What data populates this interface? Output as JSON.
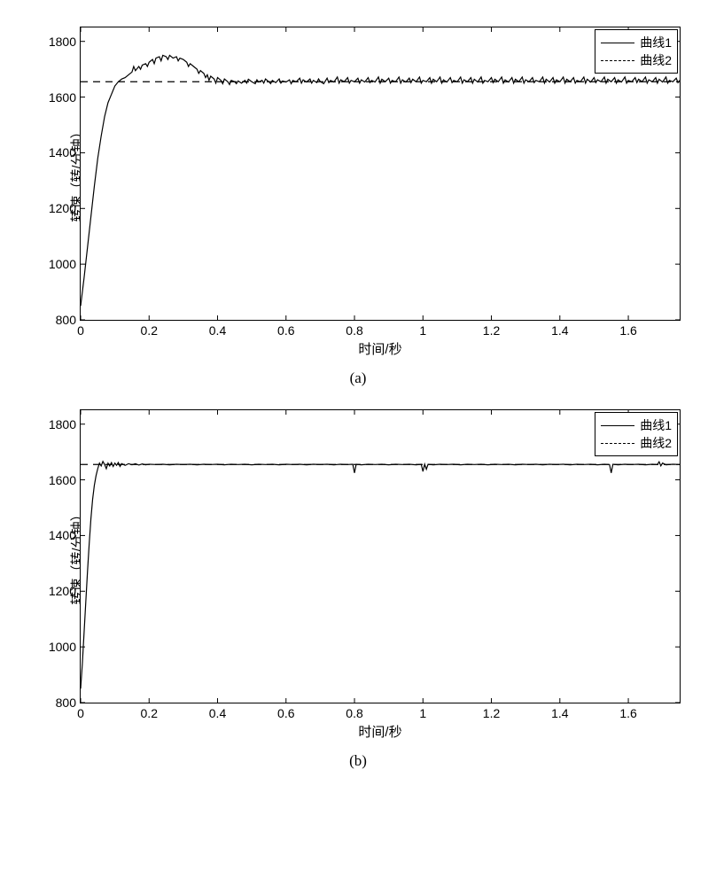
{
  "chart_a": {
    "type": "line",
    "xlabel": "时间/秒",
    "ylabel": "转速（转/分钟）",
    "sublabel": "(a)",
    "xlim": [
      0,
      1.75
    ],
    "ylim": [
      800,
      1850
    ],
    "xtick_step": 0.2,
    "xticks": [
      "0",
      "0.2",
      "0.4",
      "0.6",
      "0.8",
      "1",
      "1.2",
      "1.4",
      "1.6"
    ],
    "yticks": [
      "800",
      "1000",
      "1200",
      "1400",
      "1600",
      "1800"
    ],
    "legend": {
      "series1": "曲线1",
      "series2": "曲线2"
    },
    "line_color": "#000000",
    "background_color": "#ffffff",
    "label_fontsize": 15,
    "tick_fontsize": 14,
    "series1_points": [
      [
        0,
        850
      ],
      [
        0.01,
        950
      ],
      [
        0.02,
        1060
      ],
      [
        0.03,
        1170
      ],
      [
        0.04,
        1280
      ],
      [
        0.05,
        1380
      ],
      [
        0.06,
        1460
      ],
      [
        0.07,
        1530
      ],
      [
        0.08,
        1580
      ],
      [
        0.09,
        1610
      ],
      [
        0.1,
        1640
      ],
      [
        0.11,
        1655
      ],
      [
        0.12,
        1665
      ],
      [
        0.13,
        1670
      ],
      [
        0.14,
        1680
      ],
      [
        0.15,
        1690
      ],
      [
        0.155,
        1710
      ],
      [
        0.16,
        1695
      ],
      [
        0.17,
        1710
      ],
      [
        0.175,
        1700
      ],
      [
        0.18,
        1715
      ],
      [
        0.19,
        1720
      ],
      [
        0.195,
        1710
      ],
      [
        0.2,
        1725
      ],
      [
        0.21,
        1735
      ],
      [
        0.215,
        1720
      ],
      [
        0.22,
        1740
      ],
      [
        0.23,
        1745
      ],
      [
        0.235,
        1730
      ],
      [
        0.24,
        1750
      ],
      [
        0.25,
        1745
      ],
      [
        0.255,
        1735
      ],
      [
        0.26,
        1750
      ],
      [
        0.27,
        1740
      ],
      [
        0.28,
        1745
      ],
      [
        0.285,
        1730
      ],
      [
        0.29,
        1740
      ],
      [
        0.3,
        1735
      ],
      [
        0.31,
        1725
      ],
      [
        0.315,
        1710
      ],
      [
        0.32,
        1720
      ],
      [
        0.33,
        1710
      ],
      [
        0.34,
        1700
      ],
      [
        0.345,
        1685
      ],
      [
        0.35,
        1695
      ],
      [
        0.36,
        1685
      ],
      [
        0.365,
        1670
      ],
      [
        0.37,
        1680
      ],
      [
        0.375,
        1660
      ],
      [
        0.38,
        1675
      ],
      [
        0.39,
        1665
      ],
      [
        0.395,
        1650
      ],
      [
        0.4,
        1670
      ],
      [
        0.41,
        1660
      ],
      [
        0.415,
        1648
      ],
      [
        0.42,
        1665
      ],
      [
        0.43,
        1655
      ],
      [
        0.435,
        1645
      ],
      [
        0.44,
        1660
      ],
      [
        0.45,
        1655
      ],
      [
        0.455,
        1648
      ],
      [
        0.46,
        1658
      ],
      [
        0.47,
        1650
      ],
      [
        0.48,
        1660
      ],
      [
        0.485,
        1650
      ],
      [
        0.49,
        1664
      ],
      [
        0.5,
        1655
      ],
      [
        0.51,
        1648
      ],
      [
        0.515,
        1662
      ],
      [
        0.52,
        1654
      ],
      [
        0.53,
        1660
      ],
      [
        0.535,
        1650
      ],
      [
        0.54,
        1665
      ],
      [
        0.55,
        1655
      ],
      [
        0.555,
        1648
      ],
      [
        0.56,
        1660
      ],
      [
        0.57,
        1652
      ],
      [
        0.58,
        1665
      ],
      [
        0.585,
        1650
      ],
      [
        0.59,
        1658
      ],
      [
        0.6,
        1654
      ],
      [
        0.61,
        1662
      ],
      [
        0.615,
        1648
      ],
      [
        0.62,
        1660
      ],
      [
        0.63,
        1655
      ],
      [
        0.64,
        1668
      ],
      [
        0.645,
        1650
      ],
      [
        0.65,
        1662
      ],
      [
        0.66,
        1654
      ],
      [
        0.67,
        1665
      ],
      [
        0.675,
        1650
      ],
      [
        0.68,
        1660
      ],
      [
        0.69,
        1652
      ],
      [
        0.695,
        1665
      ],
      [
        0.7,
        1656
      ],
      [
        0.71,
        1648
      ],
      [
        0.72,
        1668
      ],
      [
        0.725,
        1652
      ],
      [
        0.73,
        1660
      ],
      [
        0.74,
        1654
      ],
      [
        0.75,
        1672
      ],
      [
        0.755,
        1650
      ],
      [
        0.76,
        1662
      ],
      [
        0.77,
        1655
      ],
      [
        0.78,
        1670
      ],
      [
        0.785,
        1650
      ],
      [
        0.79,
        1660
      ],
      [
        0.8,
        1655
      ],
      [
        0.81,
        1668
      ],
      [
        0.815,
        1650
      ],
      [
        0.82,
        1662
      ],
      [
        0.83,
        1654
      ],
      [
        0.84,
        1670
      ],
      [
        0.845,
        1652
      ],
      [
        0.85,
        1660
      ],
      [
        0.86,
        1654
      ],
      [
        0.87,
        1672
      ],
      [
        0.875,
        1650
      ],
      [
        0.88,
        1664
      ],
      [
        0.89,
        1655
      ],
      [
        0.9,
        1668
      ],
      [
        0.905,
        1650
      ],
      [
        0.91,
        1660
      ],
      [
        0.92,
        1655
      ],
      [
        0.93,
        1672
      ],
      [
        0.935,
        1650
      ],
      [
        0.94,
        1662
      ],
      [
        0.95,
        1654
      ],
      [
        0.96,
        1668
      ],
      [
        0.965,
        1652
      ],
      [
        0.97,
        1664
      ],
      [
        0.98,
        1655
      ],
      [
        0.99,
        1672
      ],
      [
        0.995,
        1650
      ],
      [
        1.0,
        1660
      ],
      [
        1.01,
        1655
      ],
      [
        1.02,
        1670
      ],
      [
        1.025,
        1650
      ],
      [
        1.03,
        1664
      ],
      [
        1.04,
        1655
      ],
      [
        1.05,
        1672
      ],
      [
        1.055,
        1650
      ],
      [
        1.06,
        1662
      ],
      [
        1.07,
        1654
      ],
      [
        1.08,
        1670
      ],
      [
        1.085,
        1652
      ],
      [
        1.09,
        1660
      ],
      [
        1.1,
        1655
      ],
      [
        1.11,
        1672
      ],
      [
        1.115,
        1650
      ],
      [
        1.12,
        1662
      ],
      [
        1.13,
        1655
      ],
      [
        1.14,
        1670
      ],
      [
        1.145,
        1650
      ],
      [
        1.15,
        1664
      ],
      [
        1.16,
        1654
      ],
      [
        1.17,
        1672
      ],
      [
        1.175,
        1650
      ],
      [
        1.18,
        1660
      ],
      [
        1.19,
        1655
      ],
      [
        1.2,
        1670
      ],
      [
        1.205,
        1652
      ],
      [
        1.21,
        1664
      ],
      [
        1.22,
        1655
      ],
      [
        1.23,
        1672
      ],
      [
        1.235,
        1650
      ],
      [
        1.24,
        1662
      ],
      [
        1.25,
        1654
      ],
      [
        1.26,
        1670
      ],
      [
        1.265,
        1650
      ],
      [
        1.27,
        1664
      ],
      [
        1.28,
        1655
      ],
      [
        1.29,
        1672
      ],
      [
        1.295,
        1650
      ],
      [
        1.3,
        1662
      ],
      [
        1.31,
        1655
      ],
      [
        1.32,
        1670
      ],
      [
        1.325,
        1652
      ],
      [
        1.33,
        1660
      ],
      [
        1.34,
        1655
      ],
      [
        1.35,
        1672
      ],
      [
        1.355,
        1650
      ],
      [
        1.36,
        1664
      ],
      [
        1.37,
        1654
      ],
      [
        1.38,
        1670
      ],
      [
        1.385,
        1650
      ],
      [
        1.39,
        1662
      ],
      [
        1.4,
        1655
      ],
      [
        1.41,
        1672
      ],
      [
        1.415,
        1650
      ],
      [
        1.42,
        1664
      ],
      [
        1.43,
        1655
      ],
      [
        1.44,
        1670
      ],
      [
        1.445,
        1650
      ],
      [
        1.45,
        1660
      ],
      [
        1.46,
        1655
      ],
      [
        1.47,
        1672
      ],
      [
        1.475,
        1650
      ],
      [
        1.48,
        1664
      ],
      [
        1.49,
        1654
      ],
      [
        1.5,
        1670
      ],
      [
        1.505,
        1652
      ],
      [
        1.51,
        1662
      ],
      [
        1.52,
        1655
      ],
      [
        1.53,
        1672
      ],
      [
        1.535,
        1650
      ],
      [
        1.54,
        1664
      ],
      [
        1.55,
        1655
      ],
      [
        1.56,
        1670
      ],
      [
        1.565,
        1650
      ],
      [
        1.57,
        1662
      ],
      [
        1.58,
        1654
      ],
      [
        1.59,
        1672
      ],
      [
        1.595,
        1650
      ],
      [
        1.6,
        1660
      ],
      [
        1.61,
        1655
      ],
      [
        1.62,
        1670
      ],
      [
        1.625,
        1652
      ],
      [
        1.63,
        1664
      ],
      [
        1.64,
        1655
      ],
      [
        1.65,
        1672
      ],
      [
        1.655,
        1650
      ],
      [
        1.66,
        1662
      ],
      [
        1.67,
        1655
      ],
      [
        1.68,
        1670
      ],
      [
        1.685,
        1650
      ],
      [
        1.69,
        1664
      ],
      [
        1.7,
        1654
      ],
      [
        1.71,
        1672
      ],
      [
        1.715,
        1650
      ],
      [
        1.72,
        1660
      ],
      [
        1.73,
        1655
      ],
      [
        1.74,
        1668
      ],
      [
        1.745,
        1652
      ],
      [
        1.75,
        1660
      ]
    ],
    "series2_value": 1655
  },
  "chart_b": {
    "type": "line",
    "xlabel": "时间/秒",
    "ylabel": "转速（转/分钟）",
    "sublabel": "(b)",
    "xlim": [
      0,
      1.75
    ],
    "ylim": [
      800,
      1850
    ],
    "xtick_step": 0.2,
    "xticks": [
      "0",
      "0.2",
      "0.4",
      "0.6",
      "0.8",
      "1",
      "1.2",
      "1.4",
      "1.6"
    ],
    "yticks": [
      "800",
      "1000",
      "1200",
      "1400",
      "1600",
      "1800"
    ],
    "legend": {
      "series1": "曲线1",
      "series2": "曲线2"
    },
    "line_color": "#000000",
    "background_color": "#ffffff",
    "label_fontsize": 15,
    "tick_fontsize": 14,
    "series1_points": [
      [
        0,
        850
      ],
      [
        0.005,
        940
      ],
      [
        0.01,
        1050
      ],
      [
        0.015,
        1160
      ],
      [
        0.02,
        1270
      ],
      [
        0.025,
        1370
      ],
      [
        0.03,
        1460
      ],
      [
        0.035,
        1530
      ],
      [
        0.04,
        1580
      ],
      [
        0.045,
        1615
      ],
      [
        0.05,
        1640
      ],
      [
        0.055,
        1660
      ],
      [
        0.06,
        1650
      ],
      [
        0.065,
        1666
      ],
      [
        0.07,
        1655
      ],
      [
        0.075,
        1640
      ],
      [
        0.08,
        1660
      ],
      [
        0.085,
        1650
      ],
      [
        0.09,
        1662
      ],
      [
        0.095,
        1648
      ],
      [
        0.1,
        1660
      ],
      [
        0.105,
        1652
      ],
      [
        0.11,
        1662
      ],
      [
        0.115,
        1648
      ],
      [
        0.12,
        1658
      ],
      [
        0.13,
        1652
      ],
      [
        0.14,
        1658
      ],
      [
        0.15,
        1654
      ],
      [
        0.16,
        1658
      ],
      [
        0.17,
        1653
      ],
      [
        0.18,
        1657
      ],
      [
        0.19,
        1654
      ],
      [
        0.2,
        1656
      ],
      [
        0.22,
        1655
      ],
      [
        0.24,
        1656
      ],
      [
        0.26,
        1654
      ],
      [
        0.28,
        1656
      ],
      [
        0.3,
        1655
      ],
      [
        0.32,
        1656
      ],
      [
        0.34,
        1654
      ],
      [
        0.36,
        1656
      ],
      [
        0.38,
        1655
      ],
      [
        0.4,
        1656
      ],
      [
        0.42,
        1654
      ],
      [
        0.44,
        1656
      ],
      [
        0.46,
        1655
      ],
      [
        0.48,
        1656
      ],
      [
        0.5,
        1654
      ],
      [
        0.52,
        1656
      ],
      [
        0.54,
        1655
      ],
      [
        0.56,
        1656
      ],
      [
        0.58,
        1654
      ],
      [
        0.6,
        1656
      ],
      [
        0.62,
        1655
      ],
      [
        0.64,
        1656
      ],
      [
        0.66,
        1654
      ],
      [
        0.68,
        1656
      ],
      [
        0.7,
        1655
      ],
      [
        0.72,
        1656
      ],
      [
        0.74,
        1654
      ],
      [
        0.76,
        1656
      ],
      [
        0.78,
        1655
      ],
      [
        0.795,
        1656
      ],
      [
        0.8,
        1625
      ],
      [
        0.805,
        1656
      ],
      [
        0.82,
        1654
      ],
      [
        0.84,
        1656
      ],
      [
        0.86,
        1655
      ],
      [
        0.88,
        1656
      ],
      [
        0.9,
        1654
      ],
      [
        0.92,
        1656
      ],
      [
        0.94,
        1655
      ],
      [
        0.96,
        1656
      ],
      [
        0.98,
        1654
      ],
      [
        0.995,
        1656
      ],
      [
        1.0,
        1630
      ],
      [
        1.005,
        1656
      ],
      [
        1.01,
        1638
      ],
      [
        1.015,
        1656
      ],
      [
        1.03,
        1654
      ],
      [
        1.05,
        1656
      ],
      [
        1.07,
        1655
      ],
      [
        1.09,
        1656
      ],
      [
        1.11,
        1654
      ],
      [
        1.13,
        1656
      ],
      [
        1.15,
        1655
      ],
      [
        1.17,
        1656
      ],
      [
        1.19,
        1654
      ],
      [
        1.21,
        1656
      ],
      [
        1.23,
        1655
      ],
      [
        1.25,
        1656
      ],
      [
        1.27,
        1654
      ],
      [
        1.29,
        1656
      ],
      [
        1.31,
        1655
      ],
      [
        1.33,
        1656
      ],
      [
        1.35,
        1654
      ],
      [
        1.37,
        1656
      ],
      [
        1.39,
        1655
      ],
      [
        1.41,
        1656
      ],
      [
        1.43,
        1654
      ],
      [
        1.45,
        1656
      ],
      [
        1.47,
        1655
      ],
      [
        1.49,
        1656
      ],
      [
        1.51,
        1654
      ],
      [
        1.53,
        1656
      ],
      [
        1.545,
        1655
      ],
      [
        1.55,
        1625
      ],
      [
        1.555,
        1656
      ],
      [
        1.57,
        1654
      ],
      [
        1.59,
        1656
      ],
      [
        1.61,
        1655
      ],
      [
        1.63,
        1656
      ],
      [
        1.65,
        1654
      ],
      [
        1.67,
        1656
      ],
      [
        1.685,
        1655
      ],
      [
        1.69,
        1665
      ],
      [
        1.695,
        1650
      ],
      [
        1.7,
        1660
      ],
      [
        1.71,
        1654
      ],
      [
        1.73,
        1656
      ],
      [
        1.75,
        1655
      ]
    ],
    "series2_value": 1655
  }
}
